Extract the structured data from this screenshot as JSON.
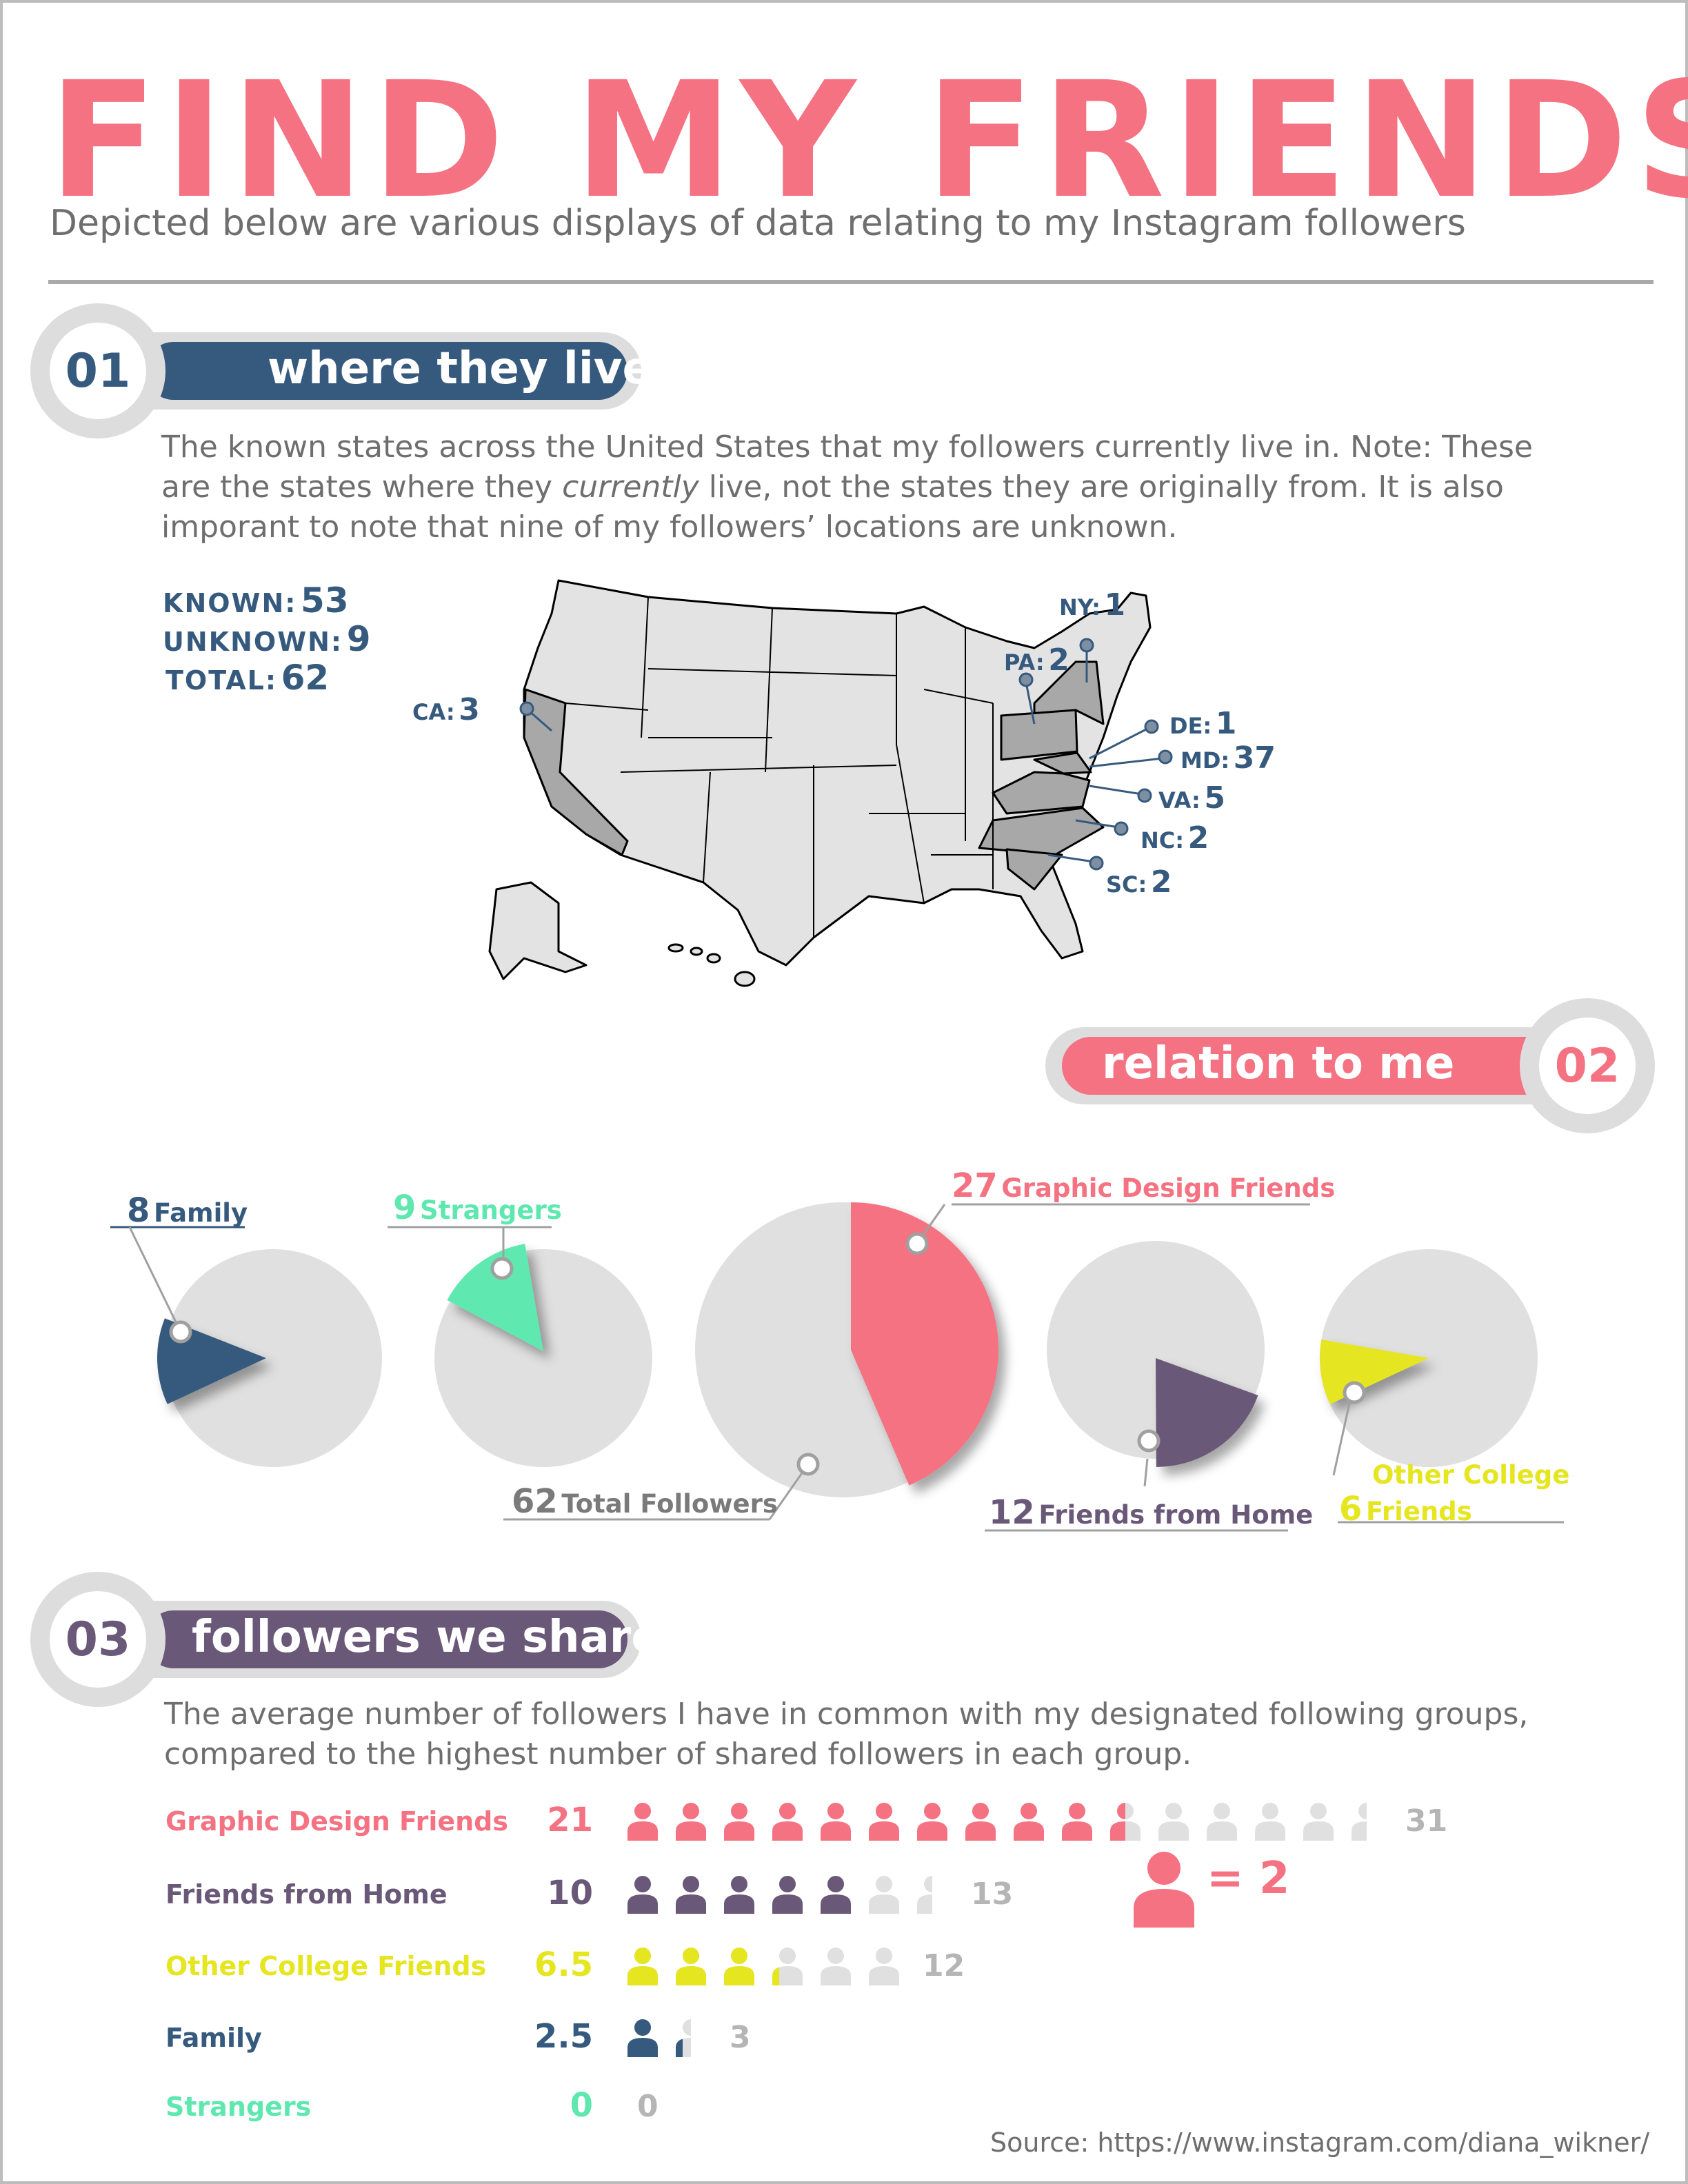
{
  "header": {
    "title": "FIND MY FRIENDS",
    "subtitle": "Depicted below are various displays of data relating to my Instagram followers"
  },
  "section1": {
    "number": "01",
    "label": "where they live",
    "text_line1": "The known states across the United States that my followers currently live in. Note: These",
    "text_line2_pre": "are the states where they ",
    "text_line2_em": "currently",
    "text_line2_post": " live, not the states they are originally from. It is also",
    "text_line3": "imporant to note that nine of my followers’ locations are unknown.",
    "stats": {
      "known_label": "KNOWN:",
      "known_value": "53",
      "unknown_label": "UNKNOWN:",
      "unknown_value": "9",
      "total_label": "TOTAL:",
      "total_value": "62"
    },
    "states": [
      {
        "abbr": "NY:",
        "count": "1"
      },
      {
        "abbr": "PA:",
        "count": "2"
      },
      {
        "abbr": "CA:",
        "count": "3"
      },
      {
        "abbr": "DE:",
        "count": "1"
      },
      {
        "abbr": "MD:",
        "count": "37"
      },
      {
        "abbr": "VA:",
        "count": "5"
      },
      {
        "abbr": "NC:",
        "count": "2"
      },
      {
        "abbr": "SC:",
        "count": "2"
      }
    ],
    "colors": {
      "highlight": "#a8a8a8",
      "base": "#e3e3e3",
      "pin": "#7f8fa2"
    }
  },
  "section2": {
    "number": "02",
    "label": "relation to me",
    "total_value": 62,
    "pies": [
      {
        "name": "Family",
        "value": 8,
        "color": "#365a7e"
      },
      {
        "name": "Strangers",
        "value": 9,
        "color": "#5ee8b0"
      },
      {
        "name": "Graphic Design Friends",
        "value": 27,
        "color": "#f47281"
      },
      {
        "name": "Friends from Home",
        "value": 12,
        "color": "#6a5878"
      },
      {
        "name": "Other College Friends",
        "value": 6,
        "color": "#e5e520"
      }
    ],
    "labels": {
      "family_n": "8",
      "family_t": "Family",
      "strangers_n": "9",
      "strangers_t": "Strangers",
      "gd_n": "27",
      "gd_t": "Graphic Design Friends",
      "total_n": "62",
      "total_t": "Total Followers",
      "home_n": "12",
      "home_t": "Friends from Home",
      "college_n": "6",
      "college_t1": "Other College",
      "college_t2": "Friends"
    }
  },
  "section3": {
    "number": "03",
    "label": "followers we share",
    "text_line1": "The average number of followers I have in common with my designated following groups,",
    "text_line2": "compared to the highest number of shared followers in each group.",
    "rows": [
      {
        "name": "Graphic Design Friends",
        "avg": 21,
        "avg_text": "21",
        "max": 31,
        "max_text": "31",
        "color": "#f47281"
      },
      {
        "name": "Friends from Home",
        "avg": 10,
        "avg_text": "10",
        "max": 13,
        "max_text": "13",
        "color": "#6a5878"
      },
      {
        "name": "Other College Friends",
        "avg": 6.5,
        "avg_text": "6.5",
        "max": 12,
        "max_text": "12",
        "color": "#e5e520"
      },
      {
        "name": "Family",
        "avg": 2.5,
        "avg_text": "2.5",
        "max": 3,
        "max_text": "3",
        "color": "#365a7e"
      },
      {
        "name": "Strangers",
        "avg": 0,
        "avg_text": "0",
        "max": 0,
        "max_text": "0",
        "color": "#5ee8b0"
      }
    ],
    "legend": {
      "text": "= 2",
      "per_icon": 2
    },
    "empty_color": "#e0e0e0"
  },
  "source": "Source: https://www.instagram.com/diana_wikner/"
}
